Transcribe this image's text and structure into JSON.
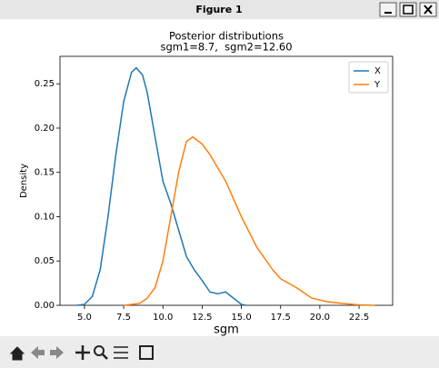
{
  "window": {
    "title": "Figure 1"
  },
  "chart_data": {
    "type": "line",
    "title": "Posterior distributions",
    "subtitle": "sgm1=8.7,  sgm2=12.60",
    "x_label": "sgm",
    "y_label": "Density",
    "xlim": [
      3.44,
      24.64
    ],
    "ylim": [
      0,
      0.281
    ],
    "xticks": [
      {
        "value": 5,
        "label": "5.0"
      },
      7.5,
      {
        "value": 10,
        "label": "10.0"
      },
      12.5,
      {
        "value": 15,
        "label": "15.0"
      },
      17.5,
      {
        "value": 20,
        "label": "20.0"
      },
      22.5
    ],
    "yticks": [
      {
        "value": 0,
        "label": "0.00"
      },
      0.05,
      {
        "value": 0.1,
        "label": "0.10"
      },
      0.15,
      {
        "value": 0.2,
        "label": "0.20"
      },
      0.25
    ],
    "legend": "upper right",
    "series": [
      {
        "name": "X",
        "color": "#1f77b4",
        "x": [
          4.5,
          5.0,
          5.5,
          6.0,
          6.5,
          7.0,
          7.5,
          8.0,
          8.3,
          8.7,
          9.0,
          9.5,
          10.0,
          10.5,
          11.0,
          11.5,
          12.0,
          12.5,
          13.0,
          13.5,
          14.0,
          14.5,
          15.0,
          15.3
        ],
        "values": [
          0,
          0.001,
          0.01,
          0.04,
          0.1,
          0.17,
          0.23,
          0.263,
          0.268,
          0.26,
          0.24,
          0.19,
          0.14,
          0.115,
          0.085,
          0.055,
          0.04,
          0.028,
          0.015,
          0.013,
          0.015,
          0.008,
          0.001,
          0
        ]
      },
      {
        "name": "Y",
        "color": "#ff7f0e",
        "x": [
          7.5,
          8.5,
          9.0,
          9.5,
          10.0,
          10.5,
          11.0,
          11.5,
          11.9,
          12.5,
          13.0,
          14.0,
          15.0,
          16.0,
          17.0,
          17.5,
          18.5,
          19.5,
          20.5,
          21.5,
          22.5,
          23.5
        ],
        "values": [
          0,
          0.002,
          0.008,
          0.02,
          0.05,
          0.1,
          0.15,
          0.185,
          0.19,
          0.182,
          0.17,
          0.14,
          0.1,
          0.065,
          0.04,
          0.03,
          0.02,
          0.008,
          0.004,
          0.002,
          0.0005,
          0
        ]
      }
    ]
  }
}
